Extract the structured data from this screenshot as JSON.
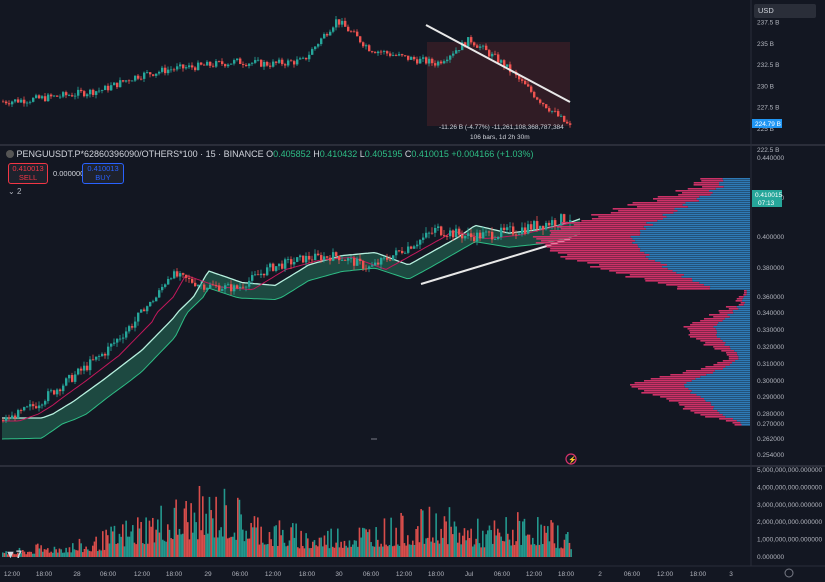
{
  "currency_button": "USD",
  "header": {
    "symbol": "PENGUUSDT.P*62860396090/OTHERS*100 · 15 · BINANCE",
    "open_label": "O",
    "open": "0.405852",
    "high_label": "H",
    "high": "0.410432",
    "low_label": "L",
    "low": "0.405195",
    "close_label": "C",
    "close": "0.410015",
    "change": "+0.004166 (+1.03%)"
  },
  "trade": {
    "sell_price": "0.410013",
    "sell_label": "SELL",
    "spread": "0.000000",
    "buy_price": "0.410013",
    "buy_label": "BUY"
  },
  "indicators_toggle": "2",
  "top_pane": {
    "measure_line1": "-11.26 B (-4.77%) -11,261,108,368,787,384",
    "measure_line2": "106 bars, 1d 2h 30m",
    "axis_ticks": [
      "237.5 B",
      "235 B",
      "232.5 B",
      "230 B",
      "227.5 B",
      "225 B",
      "222.5 B"
    ],
    "axis_values": [
      237.5,
      235,
      232.5,
      230,
      227.5,
      225,
      222.5
    ],
    "current_value": "224.79 B"
  },
  "main_pane": {
    "axis_ticks": [
      "0.440000",
      "0.420000",
      "0.400000",
      "0.380000",
      "0.360000",
      "0.340000",
      "0.330000",
      "0.320000",
      "0.310000",
      "0.300000",
      "0.290000",
      "0.280000",
      "0.270000",
      "0.262000",
      "0.254000"
    ],
    "current_price": "0.410015",
    "countdown": "07:13"
  },
  "volume_pane": {
    "axis_ticks": [
      "5,000,000,000.000000",
      "4,000,000,000.000000",
      "3,000,000,000.000000",
      "2,000,000,000.000000",
      "1,000,000,000.000000",
      "0.000000"
    ],
    "axis_values": [
      5000000000,
      4000000000,
      3000000000,
      2000000000,
      1000000000,
      0
    ]
  },
  "time_axis": [
    "12:00",
    "18:00",
    "28",
    "06:00",
    "12:00",
    "18:00",
    "29",
    "06:00",
    "12:00",
    "18:00",
    "30",
    "06:00",
    "12:00",
    "18:00",
    "Jul",
    "06:00",
    "12:00",
    "18:00",
    "2",
    "06:00",
    "12:00",
    "18:00",
    "3"
  ],
  "colors": {
    "up": "#26a69a",
    "down": "#ef5350",
    "band": "#1f4f45",
    "profile_blue": "#2f7fbf",
    "profile_pink": "#d6336c",
    "bg": "#131722"
  },
  "chart_data": [
    {
      "type": "line",
      "name": "top-pane",
      "ylim": [
        222.5,
        238.5
      ],
      "x": [
        "12:00",
        "18:00",
        "28",
        "06:00",
        "12:00",
        "18:00",
        "29",
        "06:00",
        "12:00",
        "18:00",
        "30",
        "06:00",
        "12:00",
        "18:00",
        "Jul",
        "06:00",
        "12:00",
        "18:00"
      ],
      "values": [
        228.2,
        228.5,
        229.0,
        229.6,
        231.2,
        232.0,
        232.4,
        232.9,
        232.6,
        233.0,
        237.8,
        234.4,
        233.4,
        232.7,
        235.5,
        232.6,
        228.7,
        225.2
      ]
    },
    {
      "type": "line",
      "name": "main-pane",
      "ylim": [
        0.254,
        0.44
      ],
      "x": [
        "12:00",
        "18:00",
        "28",
        "06:00",
        "12:00",
        "18:00",
        "29",
        "06:00",
        "12:00",
        "18:00",
        "30",
        "06:00",
        "12:00",
        "18:00",
        "Jul",
        "06:00",
        "12:00",
        "18:00"
      ],
      "values": [
        0.274,
        0.286,
        0.301,
        0.316,
        0.336,
        0.376,
        0.368,
        0.366,
        0.38,
        0.386,
        0.388,
        0.38,
        0.392,
        0.404,
        0.4,
        0.402,
        0.406,
        0.41
      ]
    },
    {
      "type": "bar",
      "name": "volume-pane",
      "ylim": [
        0,
        5000000000
      ],
      "peaks": [
        300000000,
        900000000,
        1100000000,
        2700000000,
        3800000000,
        4400000000,
        2600000000,
        1800000000,
        2200000000,
        2500000000,
        3100000000,
        2100000000,
        2900000000,
        1600000000
      ]
    }
  ]
}
